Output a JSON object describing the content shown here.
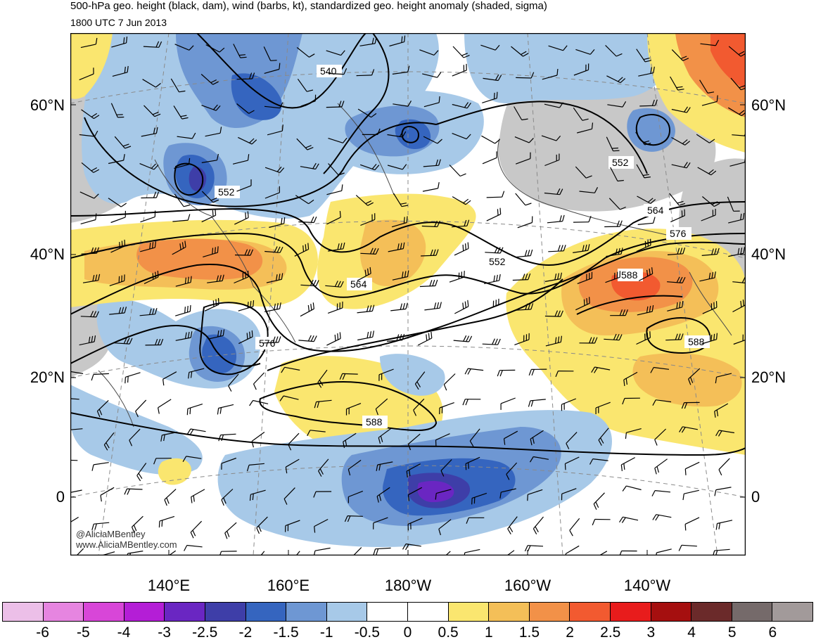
{
  "header": {
    "title": "500-hPa geo. height (black, dam), wind (barbs, kt), standardized geo. height anomaly (shaded, sigma)",
    "subtitle": "1800 UTC 7 Jun 2013"
  },
  "lat_labels": [
    "60°N",
    "40°N",
    "20°N",
    "0"
  ],
  "lon_labels": [
    "140°E",
    "160°E",
    "180°W",
    "160°W",
    "140°W"
  ],
  "contour_labels": [
    "540",
    "552",
    "552",
    "552",
    "564",
    "564",
    "576",
    "576",
    "588",
    "588",
    "588"
  ],
  "credits": {
    "handle": "@AliciaMBentley",
    "site": "www.AliciaMBentley.com"
  },
  "colorbar": {
    "labels": [
      "-6",
      "-5",
      "-4",
      "-3",
      "-2.5",
      "-2",
      "-1.5",
      "-1",
      "-0.5",
      "0",
      "0.5",
      "1",
      "1.5",
      "2",
      "2.5",
      "3",
      "4",
      "5",
      "6"
    ],
    "colors": [
      "#ecbfe8",
      "#e685e0",
      "#d846d8",
      "#b41ed6",
      "#6a26c2",
      "#3e3ea8",
      "#3565bf",
      "#6e97d3",
      "#a7c9e8",
      "#ffffff",
      "#ffffff",
      "#fae66f",
      "#f4bf58",
      "#f29148",
      "#f25a30",
      "#e81c1c",
      "#a50f0f",
      "#6b2a2a",
      "#756a6a",
      "#a29a9a"
    ]
  },
  "colors": {
    "land": "#c8c8c8",
    "contour": "#000000",
    "coast": "#4a4a4a",
    "grid": "#8a8a8a"
  }
}
